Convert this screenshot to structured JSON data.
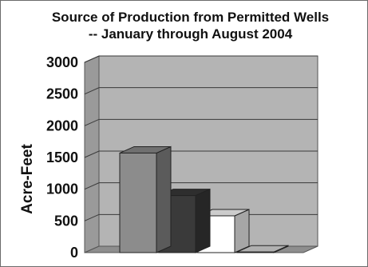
{
  "chart_data": {
    "type": "bar",
    "title": "Source of Production from Permitted Wells",
    "subtitle": "-- January through August 2004",
    "xlabel": "",
    "ylabel": "Acre-Feet",
    "categories": [
      "",
      "",
      "",
      ""
    ],
    "values": [
      1570,
      900,
      580,
      10
    ],
    "bar_colors": [
      "#8c8c8c",
      "#3a3a3a",
      "#ffffff",
      "#dcdcdc"
    ],
    "ylim": [
      0,
      3000
    ],
    "yticks": [
      "3000",
      "2500",
      "2000",
      "1500",
      "1000",
      "500",
      "0"
    ],
    "grid": true,
    "legend": "none",
    "style": "3d-column"
  }
}
